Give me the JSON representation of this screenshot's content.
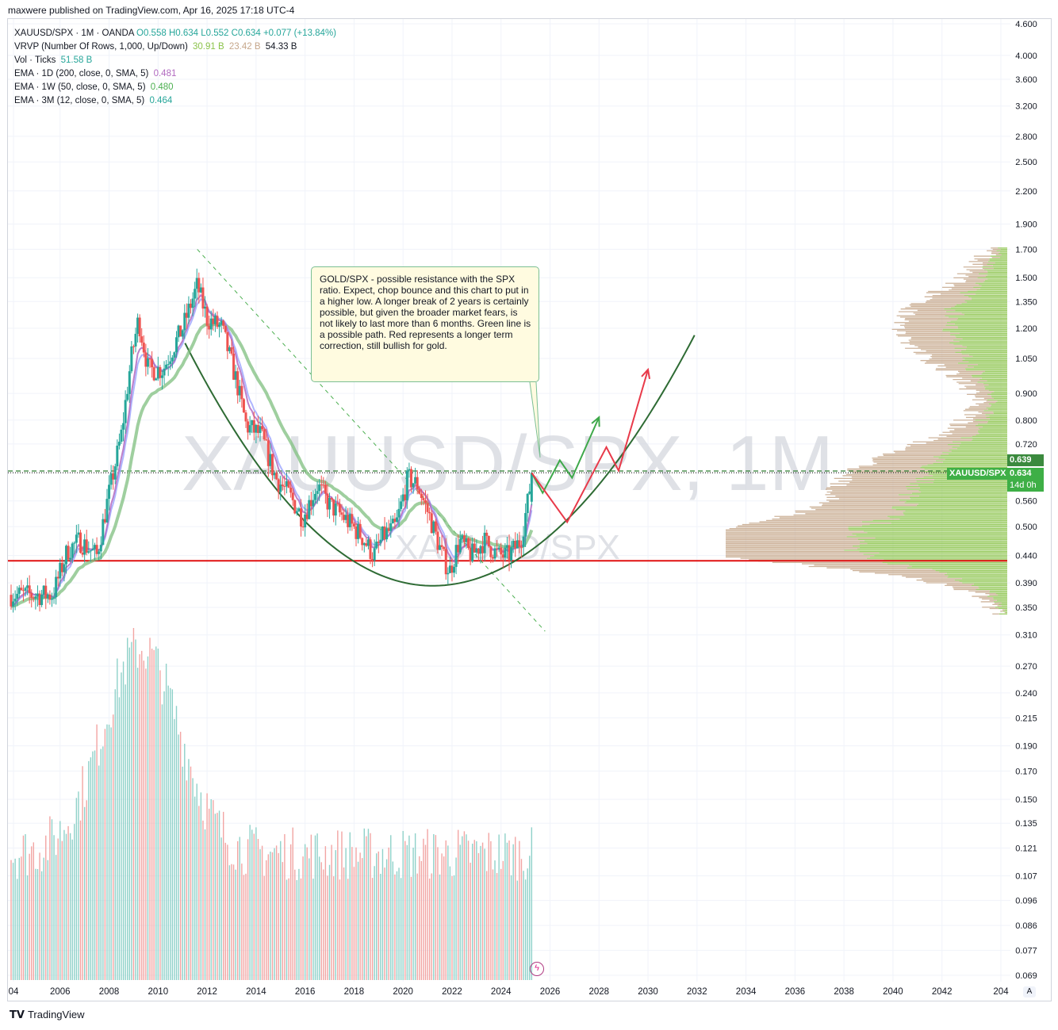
{
  "header": {
    "published": "maxwere published on TradingView.com, Apr 16, 2025 17:18 UTC-4"
  },
  "legend": {
    "symbol_line": {
      "name": "XAUUSD/SPX · 1M · OANDA",
      "open": "O0.558",
      "high": "H0.634",
      "low": "L0.552",
      "close": "C0.634",
      "change": "+0.077 (+13.84%)"
    },
    "vrvp": {
      "name": "VRVP (Number Of Rows, 1,000, Up/Down)",
      "up": "30.91 B",
      "down": "23.42 B",
      "total": "54.33 B"
    },
    "vol": {
      "name": "Vol · Ticks",
      "value": "51.58 B"
    },
    "ema1": {
      "name": "EMA · 1D (200, close, 0, SMA, 5)",
      "value": "0.481"
    },
    "ema2": {
      "name": "EMA · 1W (50, close, 0, SMA, 5)",
      "value": "0.480"
    },
    "ema3": {
      "name": "EMA · 3M (12, close, 0, SMA, 5)",
      "value": "0.464"
    }
  },
  "watermark": {
    "main": "XAUUSD/SPX, 1M",
    "sub": "XAUUSD/SPX"
  },
  "annotation": {
    "text": "GOLD/SPX - possible resistance with the SPX ratio.  Expect, chop bounce and this chart to put in a higher low.  A longer break of 2 years is certainly possible, but given the broader market fears, is not likely to last more than 6 months.  Green line is a possible path.  Red represents a longer term correction, still bullish for gold."
  },
  "price_badges": {
    "level": "0.639",
    "symbol": "XAUUSD/SPX",
    "price": "0.634",
    "countdown": "14d 0h"
  },
  "colors": {
    "up": "#26a69a",
    "down": "#ef5350",
    "ema1": "#b16ac0",
    "ema2": "#7fbf7f",
    "ema3": "#9aa3ff",
    "vrvp_up": "#8bc34a",
    "vrvp_down": "#c6a78b",
    "support_line": "#e01010",
    "bowl": "#2e6b34",
    "green_path": "#3ea84a",
    "red_path": "#e83a4a",
    "price_badge_bg": "#4caf50"
  },
  "chart_data": {
    "type": "candlestick",
    "title": "XAUUSD/SPX · 1M · OANDA",
    "y_scale": "log",
    "y_ticks": [
      "4.600",
      "4.000",
      "3.600",
      "3.200",
      "2.800",
      "2.500",
      "2.200",
      "1.900",
      "1.700",
      "1.500",
      "1.350",
      "1.200",
      "1.050",
      "0.900",
      "0.800",
      "0.720",
      "0.639",
      "0.634",
      "0.560",
      "0.500",
      "0.440",
      "0.390",
      "0.350",
      "0.310",
      "0.270",
      "0.240",
      "0.215",
      "0.190",
      "0.170",
      "0.150",
      "0.135",
      "0.121",
      "0.107",
      "0.096",
      "0.086",
      "0.077",
      "0.069"
    ],
    "x_ticks": [
      "04",
      "2006",
      "2008",
      "2010",
      "2012",
      "2014",
      "2016",
      "2018",
      "2020",
      "2022",
      "2024",
      "2026",
      "2028",
      "2030",
      "2032",
      "2034",
      "2036",
      "2038",
      "2040",
      "2042",
      "204"
    ],
    "price_path": [
      {
        "t": 2004.0,
        "v": 0.37
      },
      {
        "t": 2005.0,
        "v": 0.37
      },
      {
        "t": 2005.7,
        "v": 0.37
      },
      {
        "t": 2006.3,
        "v": 0.45
      },
      {
        "t": 2006.8,
        "v": 0.47
      },
      {
        "t": 2007.5,
        "v": 0.44
      },
      {
        "t": 2007.9,
        "v": 0.55
      },
      {
        "t": 2008.5,
        "v": 0.75
      },
      {
        "t": 2008.9,
        "v": 1.05
      },
      {
        "t": 2009.2,
        "v": 1.25
      },
      {
        "t": 2009.6,
        "v": 1.0
      },
      {
        "t": 2010.2,
        "v": 1.0
      },
      {
        "t": 2010.6,
        "v": 1.1
      },
      {
        "t": 2011.0,
        "v": 1.2
      },
      {
        "t": 2011.6,
        "v": 1.45
      },
      {
        "t": 2012.0,
        "v": 1.25
      },
      {
        "t": 2012.6,
        "v": 1.2
      },
      {
        "t": 2013.2,
        "v": 0.95
      },
      {
        "t": 2013.6,
        "v": 0.78
      },
      {
        "t": 2014.2,
        "v": 0.75
      },
      {
        "t": 2014.8,
        "v": 0.62
      },
      {
        "t": 2015.3,
        "v": 0.58
      },
      {
        "t": 2015.9,
        "v": 0.52
      },
      {
        "t": 2016.5,
        "v": 0.6
      },
      {
        "t": 2017.0,
        "v": 0.55
      },
      {
        "t": 2017.6,
        "v": 0.52
      },
      {
        "t": 2018.3,
        "v": 0.48
      },
      {
        "t": 2018.8,
        "v": 0.44
      },
      {
        "t": 2019.2,
        "v": 0.48
      },
      {
        "t": 2019.7,
        "v": 0.5
      },
      {
        "t": 2020.2,
        "v": 0.62
      },
      {
        "t": 2020.6,
        "v": 0.6
      },
      {
        "t": 2021.1,
        "v": 0.52
      },
      {
        "t": 2021.6,
        "v": 0.44
      },
      {
        "t": 2021.9,
        "v": 0.41
      },
      {
        "t": 2022.3,
        "v": 0.47
      },
      {
        "t": 2022.8,
        "v": 0.44
      },
      {
        "t": 2023.3,
        "v": 0.47
      },
      {
        "t": 2023.9,
        "v": 0.44
      },
      {
        "t": 2024.3,
        "v": 0.44
      },
      {
        "t": 2024.8,
        "v": 0.47
      },
      {
        "t": 2025.1,
        "v": 0.56
      },
      {
        "t": 2025.25,
        "v": 0.634
      }
    ],
    "last": {
      "open": 0.558,
      "high": 0.634,
      "low": 0.552,
      "close": 0.634,
      "change": 0.077,
      "change_pct": 13.84
    },
    "series": [
      {
        "name": "EMA · 1D (200, close, 0, SMA, 5)",
        "value": 0.481
      },
      {
        "name": "EMA · 1W (50, close, 0, SMA, 5)",
        "value": 0.48
      },
      {
        "name": "EMA · 3M (12, close, 0, SMA, 5)",
        "value": 0.464
      },
      {
        "name": "Vol · Ticks",
        "value": "51.58 B"
      }
    ],
    "horizontal_levels": [
      {
        "value": 0.639,
        "style": "dashed",
        "color": "#2e7d32"
      },
      {
        "value": 0.634,
        "style": "dotted",
        "color": "#333333"
      },
      {
        "value": 0.43,
        "style": "solid",
        "color": "#e01010"
      }
    ],
    "trendline": {
      "from": {
        "t": 2011.6,
        "v": 1.7
      },
      "to": {
        "t": 2025.8,
        "v": 0.315
      },
      "style": "dashed"
    },
    "projection_green": [
      {
        "t": 2025.25,
        "v": 0.634
      },
      {
        "t": 2025.7,
        "v": 0.58
      },
      {
        "t": 2026.4,
        "v": 0.67
      },
      {
        "t": 2026.9,
        "v": 0.62
      },
      {
        "t": 2028.0,
        "v": 0.81
      }
    ],
    "projection_red": [
      {
        "t": 2025.25,
        "v": 0.634
      },
      {
        "t": 2026.7,
        "v": 0.51
      },
      {
        "t": 2028.3,
        "v": 0.71
      },
      {
        "t": 2028.8,
        "v": 0.64
      },
      {
        "t": 2030.0,
        "v": 1.0
      }
    ]
  }
}
